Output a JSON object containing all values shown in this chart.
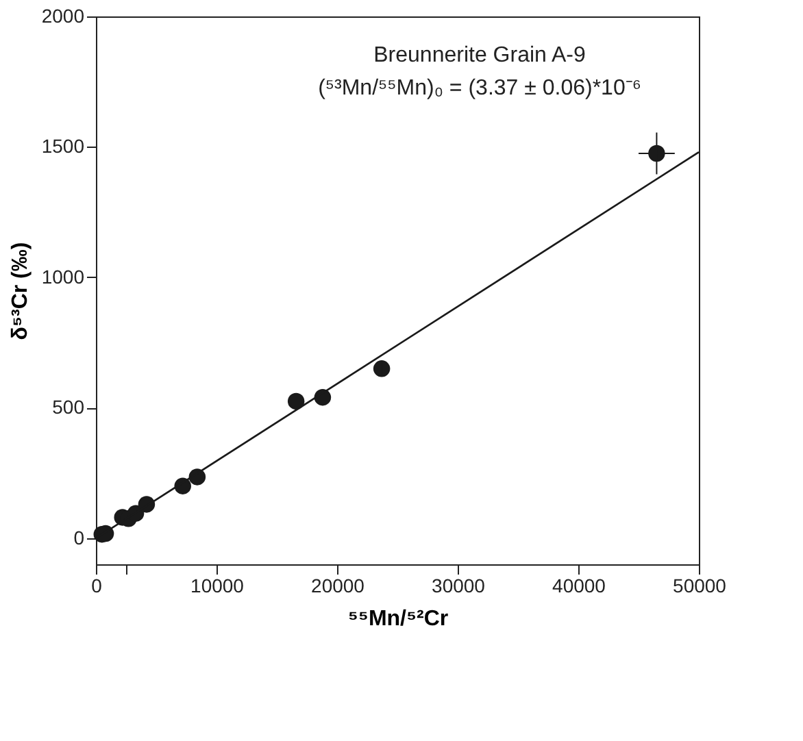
{
  "chart_data": {
    "type": "scatter",
    "annotations": [
      "Breunnerite Grain A-9",
      "(⁵³Mn/⁵⁵Mn)₀ = (3.37 ± 0.06)*10⁻⁶"
    ],
    "xlabel": "⁵⁵Mn/⁵²Cr",
    "ylabel": "δ⁵³Cr (‰)",
    "series": [
      {
        "type": "scatter",
        "color": "#1a1a1a",
        "marker": "circle",
        "x": [
          500,
          800,
          2200,
          2700,
          3300,
          4200,
          7200,
          8400,
          16600,
          18800,
          23700,
          46500
        ],
        "values": [
          15,
          18,
          80,
          75,
          95,
          130,
          200,
          235,
          525,
          540,
          650,
          1475
        ],
        "errors": [
          null,
          null,
          null,
          null,
          null,
          null,
          null,
          null,
          null,
          null,
          30,
          80
        ],
        "xerrors": [
          null,
          null,
          null,
          null,
          null,
          null,
          null,
          null,
          null,
          null,
          null,
          1500
        ]
      },
      {
        "type": "line",
        "color": "#1a1a1a",
        "x": [
          0,
          50000
        ],
        "values": [
          0,
          1480
        ]
      }
    ],
    "xlim": [
      0,
      50000
    ],
    "ylim": [
      -100,
      2000
    ],
    "xticks": [
      0,
      {
        "value": 2500,
        "label": null
      },
      10000,
      20000,
      30000,
      40000,
      50000
    ],
    "yticks": [
      0,
      500,
      1000,
      1500,
      2000
    ],
    "grid": false
  }
}
